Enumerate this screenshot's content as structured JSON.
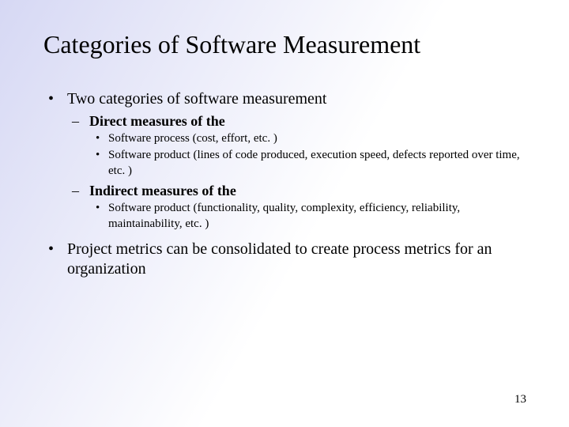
{
  "background": {
    "gradient_from": "#d6d8f4",
    "gradient_to": "#ffffff",
    "gradient_angle_deg": 120
  },
  "title": "Categories of Software Measurement",
  "bullets": {
    "b1": "Two categories of software measurement",
    "b1_1": "Direct measures of the",
    "b1_1_1": "Software process (cost, effort, etc. )",
    "b1_1_2": "Software product (lines of code produced, execution speed, defects reported over time, etc. )",
    "b1_2": "Indirect measures of the",
    "b1_2_1": "Software product (functionality, quality, complexity, efficiency, reliability, maintainability, etc. )",
    "b2": "Project metrics can be consolidated to create process metrics for an organization"
  },
  "page_number": "13",
  "typography": {
    "font_family": "Times New Roman",
    "title_fontsize_pt": 32,
    "lvl1_fontsize_pt": 20,
    "lvl2_fontsize_pt": 18,
    "lvl3_fontsize_pt": 15,
    "pagenum_fontsize_pt": 15,
    "text_color": "#000000"
  }
}
